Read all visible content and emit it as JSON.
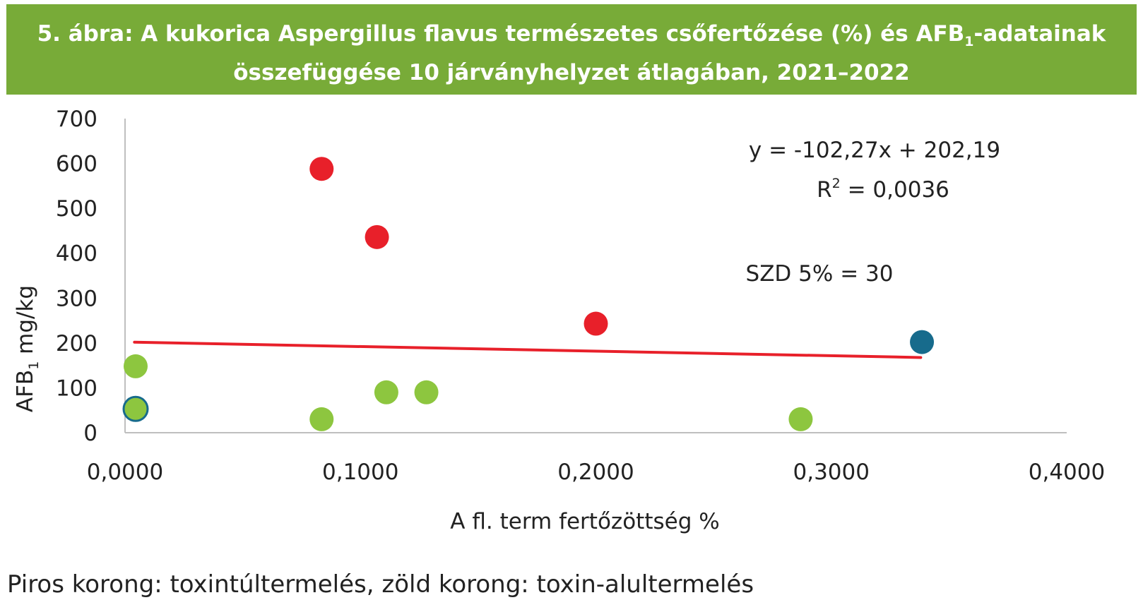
{
  "title": {
    "prefix": "5. ábra: A kukorica Aspergillus flavus természetes csőfertőzése (%) és AFB",
    "sub": "1",
    "suffix": "-adatainak",
    "line2": "összefüggése 10 járványhelyzet átlagában, 2021–2022"
  },
  "caption": "Piros korong: toxintúltermelés, zöld korong: toxin-alultermelés",
  "colors": {
    "title_bg": "#78AB38",
    "red": "#E8202A",
    "green": "#8DC63F",
    "blue": "#176B8C",
    "trend": "#E8202A",
    "axis": "#BFBFBF"
  },
  "chart_data": {
    "type": "scatter",
    "xlabel": "A fl. term fertőzöttség %",
    "ylabel_main": "AFB",
    "ylabel_sub": "1",
    "ylabel_suffix": " mg/kg",
    "xlim": [
      0,
      0.4
    ],
    "ylim": [
      0,
      700
    ],
    "x_ticks": [
      "0,0000",
      "0,1000",
      "0,2000",
      "0,3000",
      "0,4000"
    ],
    "y_ticks": [
      "0",
      "100",
      "200",
      "300",
      "400",
      "500",
      "600",
      "700"
    ],
    "grid": false,
    "points": [
      {
        "x": 0.0045,
        "y": 148,
        "color": "green",
        "filled": true
      },
      {
        "x": 0.0045,
        "y": 53,
        "color": "green",
        "filled": true,
        "outline": "blue"
      },
      {
        "x": 0.0835,
        "y": 30,
        "color": "green",
        "filled": true
      },
      {
        "x": 0.0835,
        "y": 588,
        "color": "red",
        "filled": true
      },
      {
        "x": 0.107,
        "y": 436,
        "color": "red",
        "filled": true
      },
      {
        "x": 0.111,
        "y": 90,
        "color": "green",
        "filled": true
      },
      {
        "x": 0.128,
        "y": 90,
        "color": "green",
        "filled": true
      },
      {
        "x": 0.2,
        "y": 243,
        "color": "red",
        "filled": true
      },
      {
        "x": 0.287,
        "y": 30,
        "color": "green",
        "filled": true
      },
      {
        "x": 0.3385,
        "y": 202,
        "color": "blue",
        "filled": true
      }
    ],
    "trendline": {
      "slope": -102.27,
      "intercept": 202.19,
      "x_range": [
        0.004,
        0.338
      ]
    },
    "annotations": {
      "equation": "y =  -102,27x + 202,19",
      "r2_label": "R",
      "r2_sup": "2",
      "r2_value": " = 0,0036",
      "szd": "SZD 5% = 30"
    }
  }
}
